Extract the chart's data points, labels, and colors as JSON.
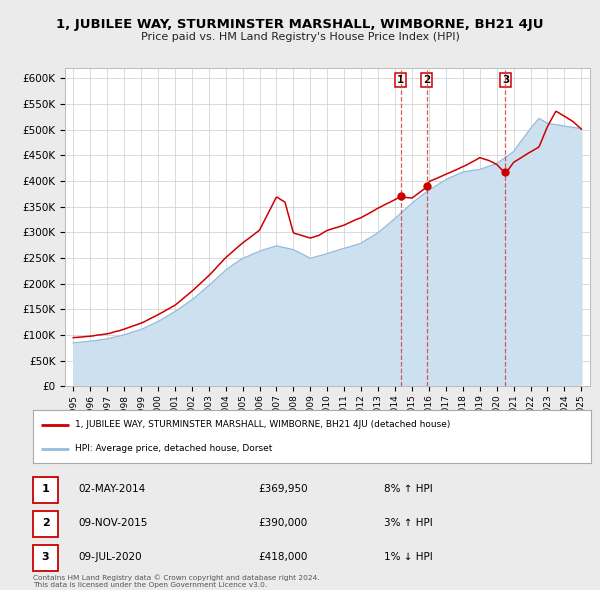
{
  "title": "1, JUBILEE WAY, STURMINSTER MARSHALL, WIMBORNE, BH21 4JU",
  "subtitle": "Price paid vs. HM Land Registry's House Price Index (HPI)",
  "legend_label_red": "1, JUBILEE WAY, STURMINSTER MARSHALL, WIMBORNE, BH21 4JU (detached house)",
  "legend_label_blue": "HPI: Average price, detached house, Dorset",
  "transactions": [
    {
      "num": 1,
      "date": "02-MAY-2014",
      "price": 369950,
      "pct": "8%",
      "dir": "↑",
      "year": 2014.33
    },
    {
      "num": 2,
      "date": "09-NOV-2015",
      "price": 390000,
      "pct": "3%",
      "dir": "↑",
      "year": 2015.86
    },
    {
      "num": 3,
      "date": "09-JUL-2020",
      "price": 418000,
      "pct": "1%",
      "dir": "↓",
      "year": 2020.52
    }
  ],
  "copyright_text": "Contains HM Land Registry data © Crown copyright and database right 2024.\nThis data is licensed under the Open Government Licence v3.0.",
  "ylim": [
    0,
    620000
  ],
  "yticks": [
    0,
    50000,
    100000,
    150000,
    200000,
    250000,
    300000,
    350000,
    400000,
    450000,
    500000,
    550000,
    600000
  ],
  "xlim": [
    1994.5,
    2025.5
  ],
  "bg_color": "#ebebeb",
  "plot_bg_color": "#ffffff",
  "grid_color": "#cccccc",
  "red_color": "#cc0000",
  "blue_color": "#99bbdd",
  "blue_fill_color": "#cce0f0",
  "marker_color": "#cc0000",
  "vline_color": "#cc4444"
}
